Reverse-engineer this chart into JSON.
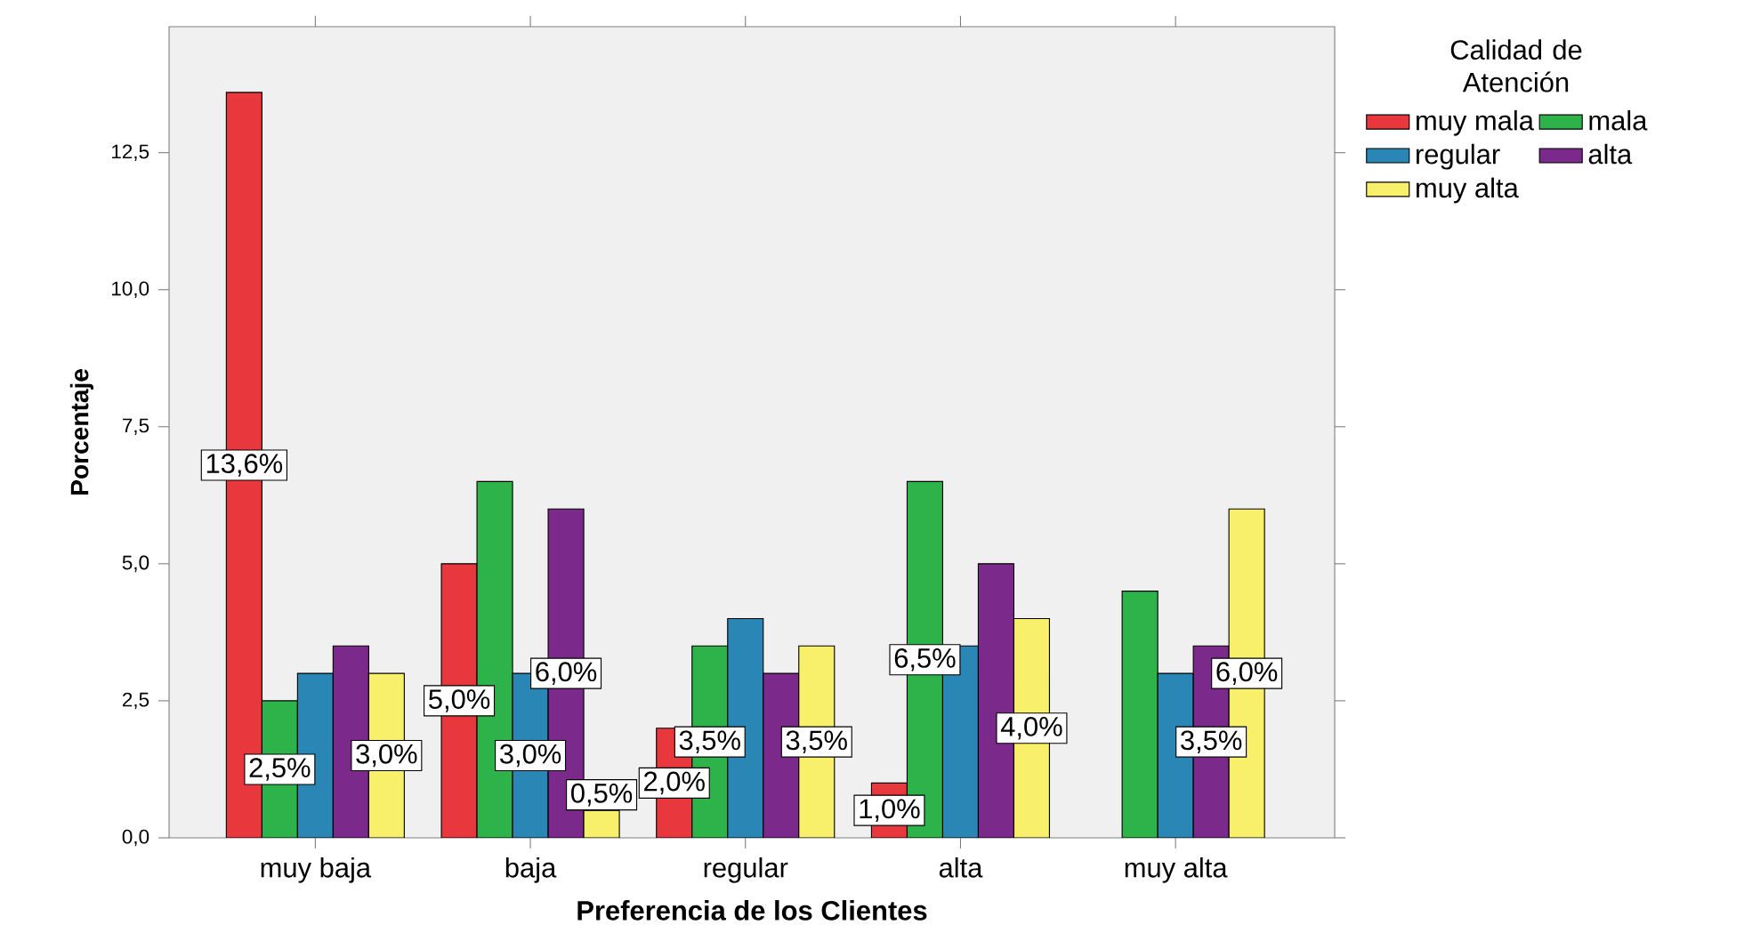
{
  "chart_data": {
    "type": "bar",
    "xlabel": "Preferencia de los Clientes",
    "ylabel": "Porcentaje",
    "legend_title": "Calidad de Atención",
    "legend": "right",
    "categories": [
      "muy baja",
      "baja",
      "regular",
      "alta",
      "muy alta"
    ],
    "ylim": [
      0,
      14.8
    ],
    "yticks": [
      {
        "value": 0,
        "label": "0,0"
      },
      {
        "value": 2.5,
        "label": "2,5"
      },
      {
        "value": 5,
        "label": "5,0"
      },
      {
        "value": 7.5,
        "label": "7,5"
      },
      {
        "value": 10,
        "label": "10,0"
      },
      {
        "value": 12.5,
        "label": "12,5"
      }
    ],
    "series": [
      {
        "name": "muy mala",
        "color": "#e8383d",
        "values": [
          13.6,
          5.0,
          2.0,
          1.0,
          null
        ],
        "value_labels": [
          "13,6%",
          "5,0%",
          "2,0%",
          "1,0%",
          null
        ]
      },
      {
        "name": "mala",
        "color": "#2db34a",
        "values": [
          2.5,
          6.5,
          3.5,
          6.5,
          4.5
        ],
        "value_labels": [
          "2,5%",
          null,
          "3,5%",
          "6,5%",
          null
        ]
      },
      {
        "name": "regular",
        "color": "#2a86b5",
        "values": [
          3.0,
          3.0,
          4.0,
          3.5,
          3.0
        ],
        "value_labels": [
          null,
          "3,0%",
          null,
          null,
          null
        ]
      },
      {
        "name": "alta",
        "color": "#7b2a8c",
        "values": [
          3.5,
          6.0,
          3.0,
          5.0,
          3.5
        ],
        "value_labels": [
          null,
          "6,0%",
          null,
          null,
          "3,5%"
        ]
      },
      {
        "name": "muy alta",
        "color": "#f8f06a",
        "values": [
          3.0,
          0.5,
          3.5,
          4.0,
          6.0
        ],
        "value_labels": [
          "3,0%",
          "0,5%",
          "3,5%",
          "4,0%",
          "6,0%"
        ]
      }
    ]
  }
}
